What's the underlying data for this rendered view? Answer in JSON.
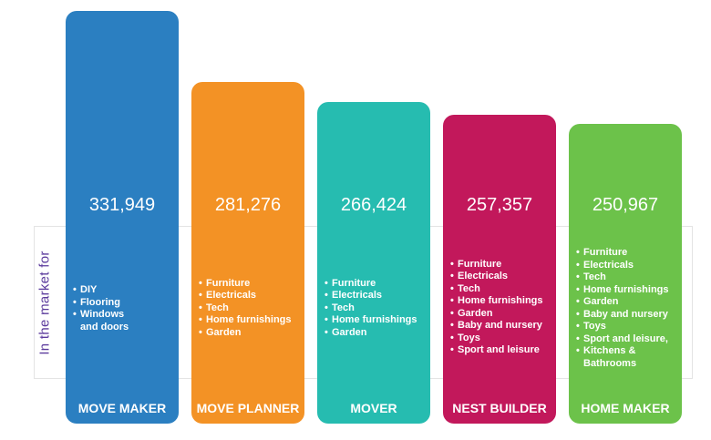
{
  "side_label": "In the market for",
  "chart_data": {
    "type": "bar",
    "categories": [
      "MOVE MAKER",
      "MOVE PLANNER",
      "MOVER",
      "NEST BUILDER",
      "HOME MAKER"
    ],
    "values": [
      331949,
      281276,
      266424,
      257357,
      250967
    ],
    "value_labels": [
      "331,949",
      "281,276",
      "266,424",
      "257,357",
      "250,967"
    ],
    "colors": [
      "#2b7fc1",
      "#f39225",
      "#26bcb0",
      "#c2185b",
      "#6cc24a"
    ],
    "items": [
      [
        "DIY",
        "Flooring",
        "Windows and doors"
      ],
      [
        "Furniture",
        "Electricals",
        "Tech",
        "Home furnishings",
        "Garden"
      ],
      [
        "Furniture",
        "Electricals",
        "Tech",
        "Home furnishings",
        "Garden"
      ],
      [
        "Furniture",
        "Electricals",
        "Tech",
        "Home furnishings",
        "Garden",
        "Baby and nursery",
        "Toys",
        "Sport and leisure"
      ],
      [
        "Furniture",
        "Electricals",
        "Tech",
        "Home furnishings",
        "Garden",
        "Baby and nursery",
        "Toys",
        "Sport and leisure,",
        "Kitchens & Bathrooms"
      ]
    ]
  }
}
